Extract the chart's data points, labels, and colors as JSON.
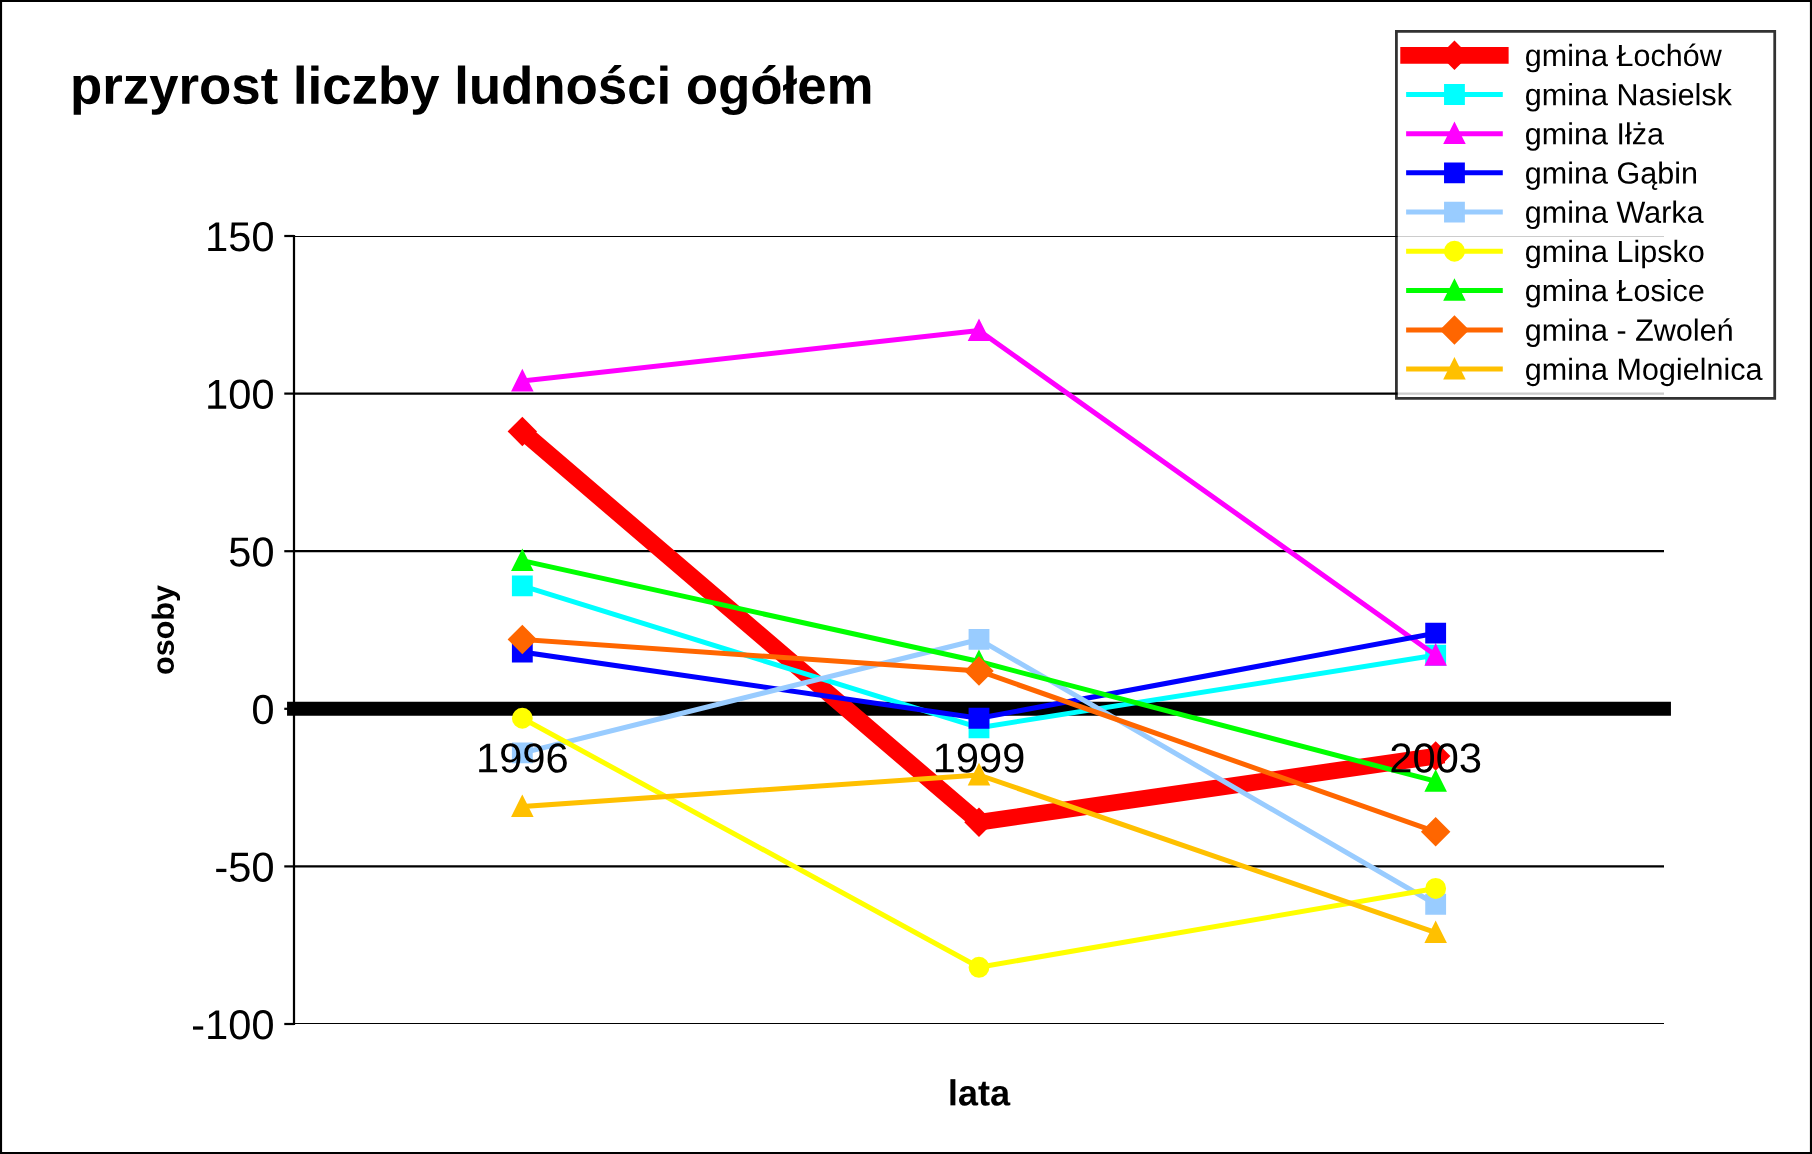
{
  "chart_data": {
    "type": "line",
    "title": "przyrost liczby ludności ogółem",
    "xlabel": "lata",
    "ylabel": "osoby",
    "categories": [
      "1996",
      "1999",
      "2003"
    ],
    "series": [
      {
        "name": "gmina Łochów",
        "color": "#ff0000",
        "marker": "diamond",
        "values": [
          88,
          -36,
          -15
        ]
      },
      {
        "name": "gmina Nasielsk",
        "color": "#00ffff",
        "marker": "square",
        "values": [
          39,
          -6,
          17
        ]
      },
      {
        "name": "gmina Iłża",
        "color": "#ff00ff",
        "marker": "triangle",
        "values": [
          104,
          120,
          17
        ]
      },
      {
        "name": "gmina Gąbin",
        "color": "#0000ff",
        "marker": "square",
        "values": [
          18,
          -3,
          24
        ]
      },
      {
        "name": "gmina Warka",
        "color": "#99ccff",
        "marker": "square",
        "values": [
          -14,
          22,
          -62
        ]
      },
      {
        "name": "gmina Lipsko",
        "color": "#ffff00",
        "marker": "circle",
        "values": [
          -3,
          -82,
          -57
        ]
      },
      {
        "name": "gmina Łosice",
        "color": "#00ff00",
        "marker": "triangle",
        "values": [
          47,
          15,
          -23
        ]
      },
      {
        "name": "gmina - Zwoleń",
        "color": "#ff6600",
        "marker": "diamond",
        "values": [
          22,
          12,
          -39
        ]
      },
      {
        "name": "gmina Mogielnica",
        "color": "#ffc000",
        "marker": "triangle",
        "values": [
          -31,
          -21,
          -71
        ]
      }
    ],
    "ylim": [
      -100,
      150
    ],
    "yticks": [
      -100,
      -50,
      0,
      50,
      100,
      150
    ],
    "grid": "y",
    "legend": "top right"
  }
}
